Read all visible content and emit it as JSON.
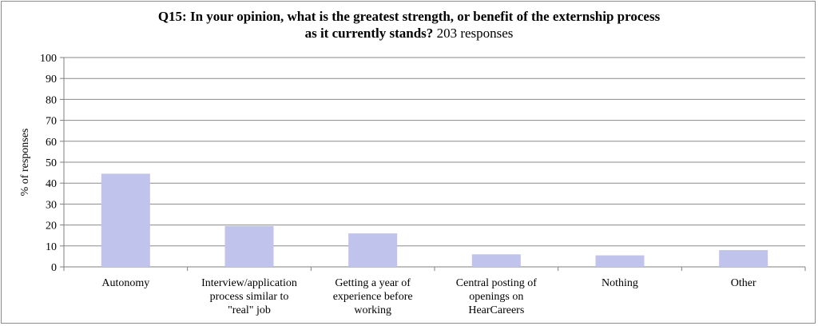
{
  "chart_data": {
    "type": "bar",
    "title_bold_line1": "Q15: In your opinion, what is the greatest strength, or benefit of the externship process",
    "title_bold_line2": "as it currently stands?",
    "subtitle": "203 responses",
    "xlabel": "",
    "ylabel": "% of responses",
    "ylim": [
      0,
      100
    ],
    "yticks": [
      0,
      10,
      20,
      30,
      40,
      50,
      60,
      70,
      80,
      90,
      100
    ],
    "categories": [
      [
        "Autonomy"
      ],
      [
        "Interview/application",
        "process similar to",
        "\"real\" job"
      ],
      [
        "Getting a year of",
        "experience before",
        "working"
      ],
      [
        "Central posting of",
        "openings on",
        "HearCareers"
      ],
      [
        "Nothing"
      ],
      [
        "Other"
      ]
    ],
    "values": [
      44.5,
      19.5,
      16,
      6,
      5.5,
      8
    ],
    "bar_color": "#c0c3eb",
    "grid": true
  }
}
